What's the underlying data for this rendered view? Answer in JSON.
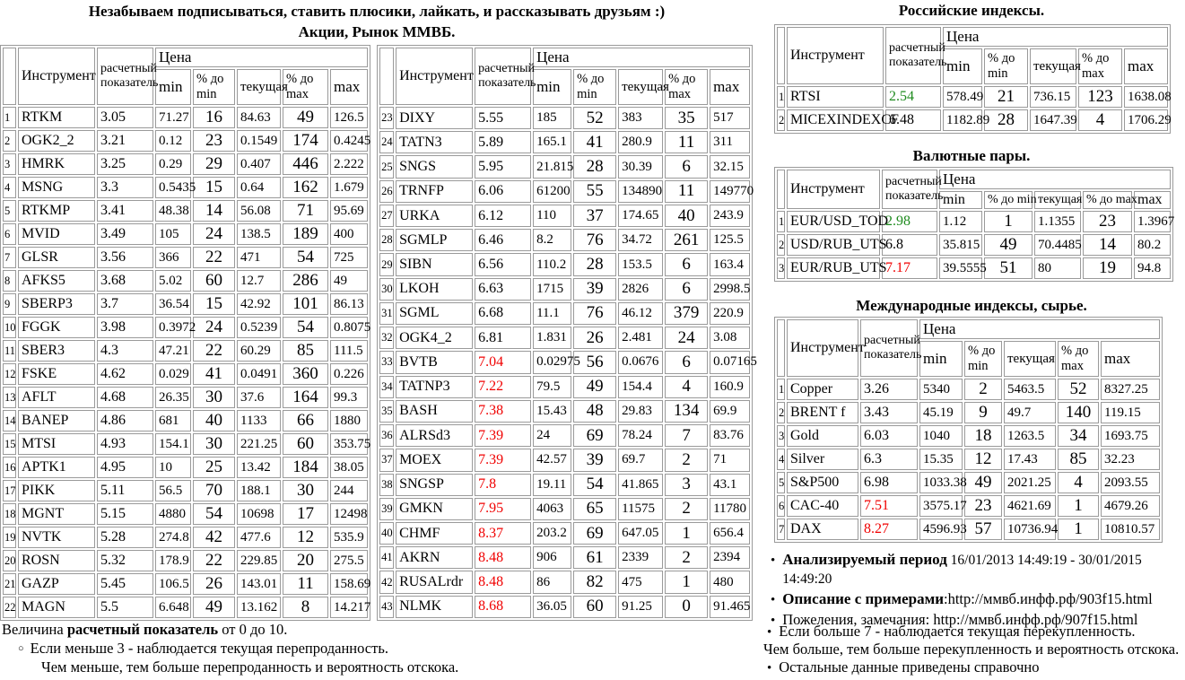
{
  "header": {
    "title": "Незабываем подписываться, ставить плюсики, лайкать, и рассказывать друзьям :)",
    "subtitle": "Акции, Рынок ММВБ."
  },
  "table_headers": {
    "instrument": "Инструмент",
    "indicator": "расчетный показатель",
    "price": "Цена",
    "min": "min",
    "pct_to_min": "% до min",
    "current": "текущая",
    "pct_to_max": "% до max",
    "max": "max"
  },
  "stocks_left": {
    "rows": [
      [
        "1",
        "RTKM",
        "3.05",
        "71.27",
        "16",
        "84.63",
        "49",
        "126.5"
      ],
      [
        "2",
        "OGK2_2",
        "3.21",
        "0.12",
        "23",
        "0.1549",
        "174",
        "0.4245"
      ],
      [
        "3",
        "HMRK",
        "3.25",
        "0.29",
        "29",
        "0.407",
        "446",
        "2.222"
      ],
      [
        "4",
        "MSNG",
        "3.3",
        "0.5435",
        "15",
        "0.64",
        "162",
        "1.679"
      ],
      [
        "5",
        "RTKMP",
        "3.41",
        "48.38",
        "14",
        "56.08",
        "71",
        "95.69"
      ],
      [
        "6",
        "MVID",
        "3.49",
        "105",
        "24",
        "138.5",
        "189",
        "400"
      ],
      [
        "7",
        "GLSR",
        "3.56",
        "366",
        "22",
        "471",
        "54",
        "725"
      ],
      [
        "8",
        "AFKS5",
        "3.68",
        "5.02",
        "60",
        "12.7",
        "286",
        "49"
      ],
      [
        "9",
        "SBERP3",
        "3.7",
        "36.54",
        "15",
        "42.92",
        "101",
        "86.13"
      ],
      [
        "10",
        "FGGK",
        "3.98",
        "0.3972",
        "24",
        "0.5239",
        "54",
        "0.8075"
      ],
      [
        "11",
        "SBER3",
        "4.3",
        "47.21",
        "22",
        "60.29",
        "85",
        "111.5"
      ],
      [
        "12",
        "FSKE",
        "4.62",
        "0.029",
        "41",
        "0.0491",
        "360",
        "0.226"
      ],
      [
        "13",
        "AFLT",
        "4.68",
        "26.35",
        "30",
        "37.6",
        "164",
        "99.3"
      ],
      [
        "14",
        "BANEP",
        "4.86",
        "681",
        "40",
        "1133",
        "66",
        "1880"
      ],
      [
        "15",
        "MTSI",
        "4.93",
        "154.1",
        "30",
        "221.25",
        "60",
        "353.75"
      ],
      [
        "16",
        "APTK1",
        "4.95",
        "10",
        "25",
        "13.42",
        "184",
        "38.05"
      ],
      [
        "17",
        "PIKK",
        "5.11",
        "56.5",
        "70",
        "188.1",
        "30",
        "244"
      ],
      [
        "18",
        "MGNT",
        "5.15",
        "4880",
        "54",
        "10698",
        "17",
        "12498"
      ],
      [
        "19",
        "NVTK",
        "5.28",
        "274.8",
        "42",
        "477.6",
        "12",
        "535.9"
      ],
      [
        "20",
        "ROSN",
        "5.32",
        "178.9",
        "22",
        "229.85",
        "20",
        "275.5"
      ],
      [
        "21",
        "GAZP",
        "5.45",
        "106.5",
        "26",
        "143.01",
        "11",
        "158.69"
      ],
      [
        "22",
        "MAGN",
        "5.5",
        "6.648",
        "49",
        "13.162",
        "8",
        "14.217"
      ]
    ]
  },
  "stocks_right": {
    "rows": [
      [
        "23",
        "DIXY",
        "5.55",
        "185",
        "52",
        "383",
        "35",
        "517"
      ],
      [
        "24",
        "TATN3",
        "5.89",
        "165.1",
        "41",
        "280.9",
        "11",
        "311"
      ],
      [
        "25",
        "SNGS",
        "5.95",
        "21.815",
        "28",
        "30.39",
        "6",
        "32.15"
      ],
      [
        "26",
        "TRNFP",
        "6.06",
        "61200",
        "55",
        "134890",
        "11",
        "149770"
      ],
      [
        "27",
        "URKA",
        "6.12",
        "110",
        "37",
        "174.65",
        "40",
        "243.9"
      ],
      [
        "28",
        "SGMLP",
        "6.46",
        "8.2",
        "76",
        "34.72",
        "261",
        "125.5"
      ],
      [
        "29",
        "SIBN",
        "6.56",
        "110.2",
        "28",
        "153.5",
        "6",
        "163.4"
      ],
      [
        "30",
        "LKOH",
        "6.63",
        "1715",
        "39",
        "2826",
        "6",
        "2998.5"
      ],
      [
        "31",
        "SGML",
        "6.68",
        "11.1",
        "76",
        "46.12",
        "379",
        "220.9"
      ],
      [
        "32",
        "OGK4_2",
        "6.81",
        "1.831",
        "26",
        "2.481",
        "24",
        "3.08"
      ],
      [
        "33",
        "BVTB",
        "7.04",
        "0.02975",
        "56",
        "0.0676",
        "6",
        "0.07165"
      ],
      [
        "34",
        "TATNP3",
        "7.22",
        "79.5",
        "49",
        "154.4",
        "4",
        "160.9"
      ],
      [
        "35",
        "BASH",
        "7.38",
        "15.43",
        "48",
        "29.83",
        "134",
        "69.9"
      ],
      [
        "36",
        "ALRSd3",
        "7.39",
        "24",
        "69",
        "78.24",
        "7",
        "83.76"
      ],
      [
        "37",
        "MOEX",
        "7.39",
        "42.57",
        "39",
        "69.7",
        "2",
        "71"
      ],
      [
        "38",
        "SNGSP",
        "7.8",
        "19.11",
        "54",
        "41.865",
        "3",
        "43.1"
      ],
      [
        "39",
        "GMKN",
        "7.95",
        "4063",
        "65",
        "11575",
        "2",
        "11780"
      ],
      [
        "40",
        "CHMF",
        "8.37",
        "203.2",
        "69",
        "647.05",
        "1",
        "656.4"
      ],
      [
        "41",
        "AKRN",
        "8.48",
        "906",
        "61",
        "2339",
        "2",
        "2394"
      ],
      [
        "42",
        "RUSALrdr",
        "8.48",
        "86",
        "82",
        "475",
        "1",
        "480"
      ],
      [
        "43",
        "NLMK",
        "8.68",
        "36.05",
        "60",
        "91.25",
        "0",
        "91.465"
      ]
    ]
  },
  "russian_indices": {
    "title": "Российские индексы.",
    "rows": [
      [
        "1",
        "RTSI",
        "2.54",
        "578.49",
        "21",
        "736.15",
        "123",
        "1638.08"
      ],
      [
        "2",
        "MICEXINDEXCF",
        "6.48",
        "1182.89",
        "28",
        "1647.39",
        "4",
        "1706.29"
      ]
    ]
  },
  "currency_pairs": {
    "title": "Валютные пары.",
    "rows": [
      [
        "1",
        "EUR/USD_TOD",
        "2.98",
        "1.12",
        "1",
        "1.1355",
        "23",
        "1.3967"
      ],
      [
        "2",
        "USD/RUB_UTS",
        "6.8",
        "35.815",
        "49",
        "70.4485",
        "14",
        "80.2"
      ],
      [
        "3",
        "EUR/RUB_UTS",
        "7.17",
        "39.5555",
        "51",
        "80",
        "19",
        "94.8"
      ]
    ]
  },
  "international": {
    "title": "Международные индексы, сырье.",
    "rows": [
      [
        "1",
        "Copper",
        "3.26",
        "5340",
        "2",
        "5463.5",
        "52",
        "8327.25"
      ],
      [
        "2",
        "BRENT f",
        "3.43",
        "45.19",
        "9",
        "49.7",
        "140",
        "119.15"
      ],
      [
        "3",
        "Gold",
        "6.03",
        "1040",
        "18",
        "1263.5",
        "34",
        "1693.75"
      ],
      [
        "4",
        "Silver",
        "6.3",
        "15.35",
        "12",
        "17.43",
        "85",
        "32.23"
      ],
      [
        "5",
        "S&P500",
        "6.98",
        "1033.38",
        "49",
        "2021.25",
        "4",
        "2093.55"
      ],
      [
        "6",
        "CAC-40",
        "7.51",
        "3575.17",
        "23",
        "4621.69",
        "1",
        "4679.26"
      ],
      [
        "7",
        "DAX",
        "8.27",
        "4596.93",
        "57",
        "10736.94",
        "1",
        "10810.57"
      ]
    ]
  },
  "notes_right": [
    {
      "bold": "Анализируемый период",
      "text": " 16/01/2013 14:49:19 - 30/01/2015 14:49:20",
      "is_url": false
    },
    {
      "bold": "Описание с примерами",
      "text": ":http://ммвб.инфф.рф/903f15.html",
      "is_url": true
    },
    {
      "bold": "",
      "text": "Пожеления, замечания: http://ммвб.инфф.рф/907f15.html",
      "is_url": true
    }
  ],
  "footer_left": {
    "line1_prefix": "Величина ",
    "line1_bold": "расчетный показатель",
    "line1_suffix": " от 0 до 10.",
    "bullet_line": "Если меньше 3 - наблюдается текущая перепроданность.",
    "continuation": "Чем меньше, тем больше перепроданность и вероятность отскока."
  },
  "footer_right": [
    {
      "bullet": true,
      "text": "Если больше 7 - наблюдается текущая перекупленность."
    },
    {
      "bullet": false,
      "text": "Чем больше, тем больше перекупленность и вероятность отскока."
    },
    {
      "bullet": true,
      "text": "Остальные данные приведены справочно"
    }
  ],
  "icons": {
    "disc_bullet": "•",
    "circle_bullet": "○"
  },
  "colors": {
    "overbought_red": "#f00000",
    "oversold_green": "#1f8b1f"
  }
}
